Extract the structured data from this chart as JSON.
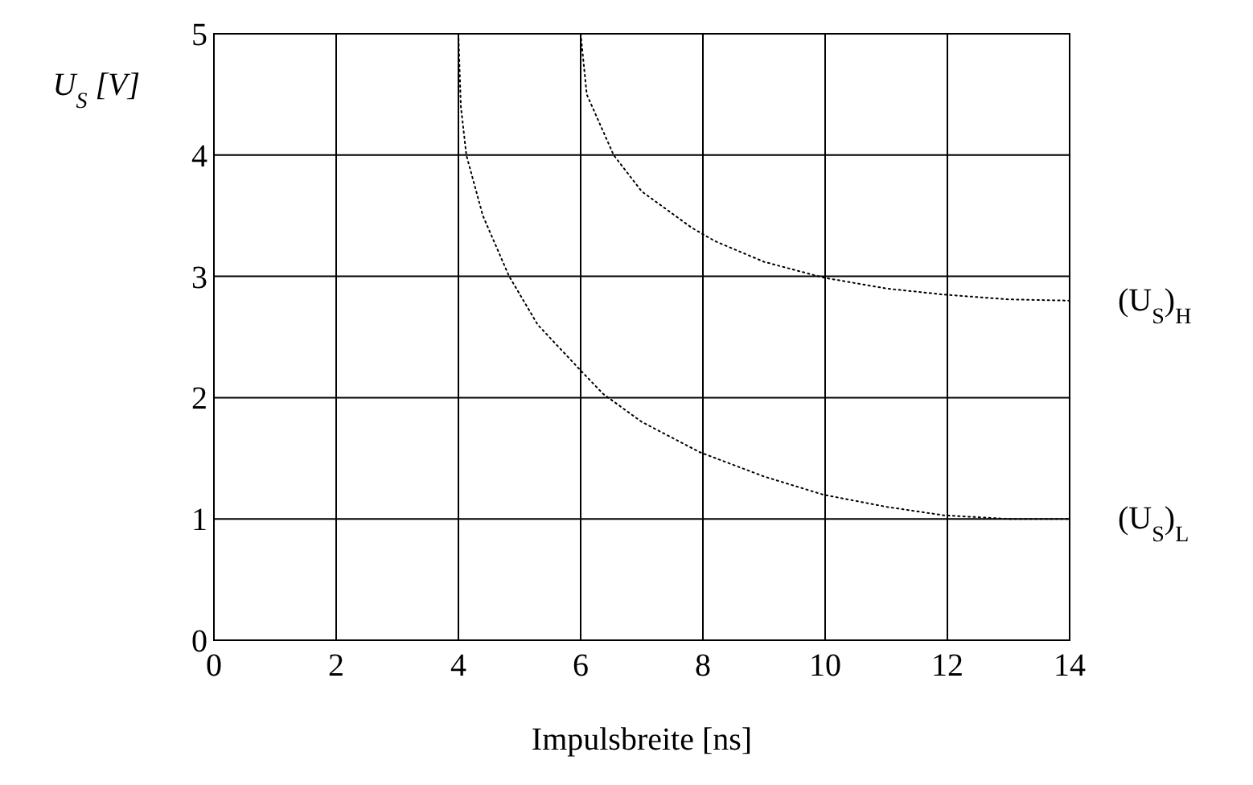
{
  "chart_data": {
    "type": "line",
    "xlabel": "Impulsbreite [ns]",
    "ylabel": "U$_{S}$ [V]",
    "xlim": [
      0,
      14
    ],
    "ylim": [
      0,
      5
    ],
    "xticks": [
      0,
      2,
      4,
      6,
      8,
      10,
      12,
      14
    ],
    "yticks": [
      0,
      1,
      2,
      3,
      4,
      5
    ],
    "grid": true,
    "line_style": "dotted",
    "marker": "none",
    "series": [
      {
        "name": "(U$_{S}$)$_{H}$",
        "color": "#000000",
        "x": [
          6,
          6.1,
          6.54,
          7,
          7.82,
          8.2,
          9,
          9.97,
          11,
          11.94,
          13,
          14
        ],
        "values": [
          5,
          4.5,
          4,
          3.7,
          3.4,
          3.29,
          3.12,
          2.99,
          2.9,
          2.85,
          2.81,
          2.8
        ]
      },
      {
        "name": "(U$_{S}$)$_{L}$",
        "color": "#000000",
        "x": [
          4,
          4.04,
          4.13,
          4.4,
          4.83,
          5.3,
          5.97,
          6.37,
          7,
          7.95,
          9,
          9.97,
          11,
          11.94,
          13,
          14
        ],
        "values": [
          5,
          4.4,
          4,
          3.5,
          3,
          2.6,
          2.24,
          2.03,
          1.8,
          1.55,
          1.35,
          1.2,
          1.1,
          1.03,
          1.0,
          1.0
        ]
      }
    ]
  }
}
